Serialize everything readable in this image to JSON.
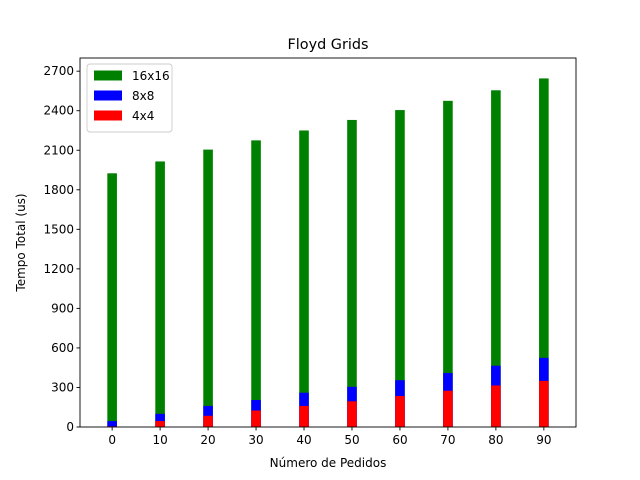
{
  "chart_data": {
    "type": "bar",
    "stacked": false,
    "title": "Floyd Grids",
    "xlabel": "Número de Pedidos",
    "ylabel": "Tempo Total (us)",
    "ylim": [
      0,
      2800
    ],
    "yticks": [
      0,
      300,
      600,
      900,
      1200,
      1500,
      1800,
      2100,
      2400,
      2700
    ],
    "xticks": [
      0,
      10,
      20,
      30,
      40,
      50,
      60,
      70,
      80,
      90
    ],
    "xlim": [
      -6.7,
      96.7
    ],
    "x": [
      0,
      10,
      20,
      30,
      40,
      50,
      60,
      70,
      80,
      90
    ],
    "grid": false,
    "legend_position": "top-left",
    "series": [
      {
        "name": "16x16",
        "color": "#008000",
        "values": [
          1925,
          2015,
          2105,
          2175,
          2250,
          2330,
          2405,
          2475,
          2555,
          2645
        ]
      },
      {
        "name": "8x8",
        "color": "#0000ff",
        "values": [
          45,
          100,
          160,
          205,
          260,
          305,
          355,
          410,
          465,
          525
        ]
      },
      {
        "name": "4x4",
        "color": "#ff0000",
        "values": [
          5,
          45,
          85,
          125,
          160,
          195,
          235,
          275,
          315,
          350
        ]
      }
    ]
  }
}
